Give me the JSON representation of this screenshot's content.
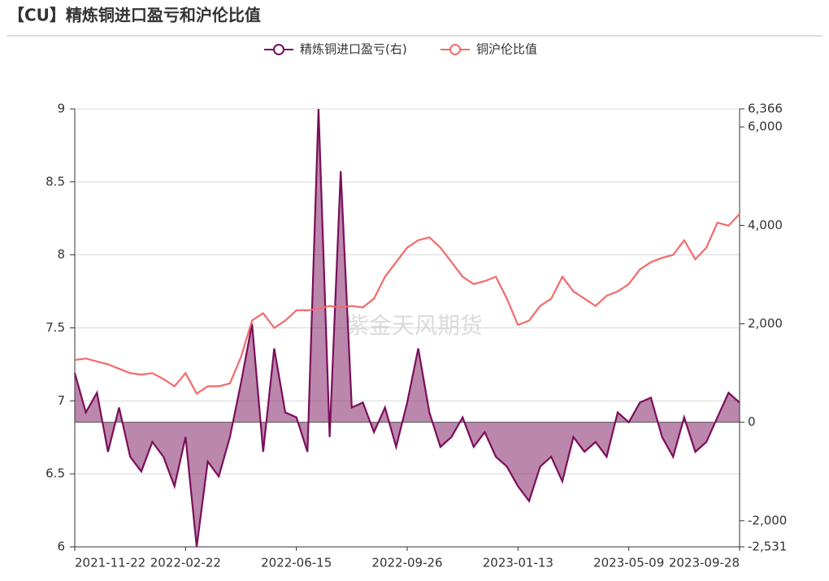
{
  "chart_data": {
    "type": "line",
    "title": "【CU】精炼铜进口盈亏和沪伦比值",
    "watermark": "紫金天风期货",
    "x": [
      "2021-11-22",
      "2021-12-01",
      "2021-12-10",
      "2021-12-20",
      "2021-12-29",
      "2022-01-07",
      "2022-01-17",
      "2022-01-26",
      "2022-02-04",
      "2022-02-14",
      "2022-02-22",
      "2022-03-04",
      "2022-03-15",
      "2022-03-25",
      "2022-04-06",
      "2022-04-18",
      "2022-04-28",
      "2022-05-10",
      "2022-05-20",
      "2022-06-01",
      "2022-06-15",
      "2022-06-24",
      "2022-07-05",
      "2022-07-15",
      "2022-07-26",
      "2022-08-04",
      "2022-08-15",
      "2022-08-24",
      "2022-09-02",
      "2022-09-15",
      "2022-09-26",
      "2022-10-13",
      "2022-10-24",
      "2022-11-02",
      "2022-11-11",
      "2022-11-22",
      "2022-12-01",
      "2022-12-12",
      "2022-12-21",
      "2023-01-03",
      "2023-01-13",
      "2023-02-01",
      "2023-02-10",
      "2023-02-21",
      "2023-03-02",
      "2023-03-13",
      "2023-03-22",
      "2023-03-31",
      "2023-04-12",
      "2023-04-24",
      "2023-05-09",
      "2023-05-23",
      "2023-06-06",
      "2023-06-19",
      "2023-07-03",
      "2023-07-17",
      "2023-07-31",
      "2023-08-14",
      "2023-08-28",
      "2023-09-12",
      "2023-09-28"
    ],
    "xticks": [
      "2021-11-22",
      "2022-02-22",
      "2022-06-15",
      "2022-09-26",
      "2023-01-13",
      "2023-05-09",
      "2023-09-28"
    ],
    "series": [
      {
        "name": "精炼铜进口盈亏(右)",
        "color": "#7a0f5a",
        "axis": "y2",
        "values": [
          1000,
          200,
          600,
          -600,
          300,
          -700,
          -1000,
          -400,
          -700,
          -1300,
          -300,
          -2531,
          -800,
          -1100,
          -300,
          800,
          2000,
          -600,
          1500,
          200,
          100,
          -600,
          6366,
          -300,
          5100,
          300,
          400,
          -200,
          300,
          -500,
          400,
          1500,
          200,
          -500,
          -300,
          100,
          -500,
          -200,
          -700,
          -900,
          -1300,
          -1600,
          -900,
          -700,
          -1200,
          -300,
          -600,
          -400,
          -700,
          200,
          0,
          400,
          500,
          -300,
          -700,
          100,
          -600,
          -400,
          100,
          600,
          400
        ]
      },
      {
        "name": "铜沪伦比值",
        "color": "#f46a6a",
        "axis": "y",
        "values": [
          7.28,
          7.29,
          7.27,
          7.25,
          7.22,
          7.19,
          7.18,
          7.19,
          7.15,
          7.1,
          7.19,
          7.05,
          7.1,
          7.1,
          7.12,
          7.3,
          7.55,
          7.6,
          7.5,
          7.55,
          7.62,
          7.62,
          7.63,
          7.65,
          7.64,
          7.65,
          7.64,
          7.7,
          7.85,
          7.95,
          8.05,
          8.1,
          8.12,
          8.05,
          7.95,
          7.85,
          7.8,
          7.82,
          7.85,
          7.7,
          7.52,
          7.55,
          7.65,
          7.7,
          7.85,
          7.75,
          7.7,
          7.65,
          7.72,
          7.75,
          7.8,
          7.9,
          7.95,
          7.98,
          8.0,
          8.1,
          7.97,
          8.05,
          8.22,
          8.2,
          8.28
        ]
      }
    ],
    "ylim": [
      6,
      9
    ],
    "yticks": [
      6,
      6.5,
      7,
      7.5,
      8,
      8.5,
      9
    ],
    "y2lim": [
      -2531,
      6366
    ],
    "y2ticks": [
      {
        "value": -2531,
        "label": "-2,531"
      },
      {
        "value": -2000,
        "label": "-2,000"
      },
      0,
      {
        "value": 2000,
        "label": "2,000"
      },
      {
        "value": 4000,
        "label": "4,000"
      },
      {
        "value": 6000,
        "label": "6,000"
      },
      {
        "value": 6366,
        "label": "6,366"
      }
    ],
    "grid": true
  }
}
